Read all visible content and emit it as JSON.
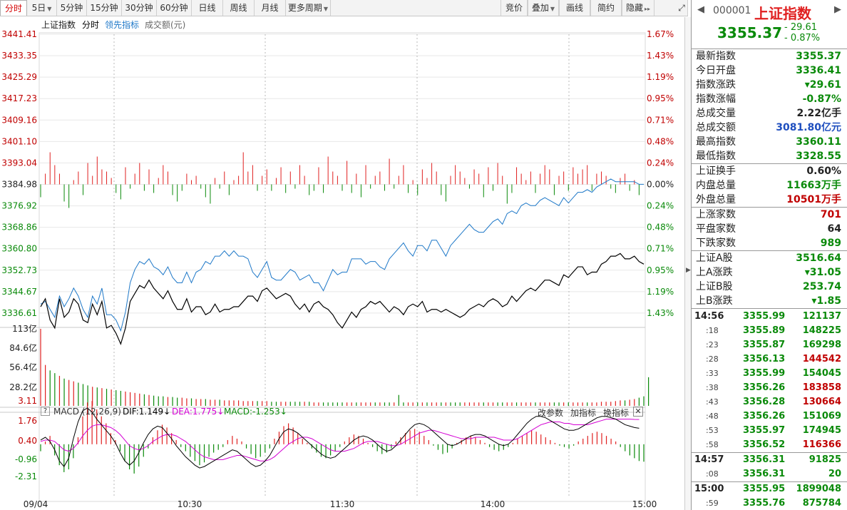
{
  "toolbar": {
    "tabs": [
      "分时",
      "5日",
      "5分钟",
      "15分钟",
      "30分钟",
      "60分钟",
      "日线",
      "周线",
      "月线",
      "更多周期"
    ],
    "right_buttons": [
      "竞价",
      "叠加",
      "画线",
      "简约",
      "隐藏"
    ]
  },
  "legend": {
    "items": [
      "上证指数",
      "分时",
      "领先指标",
      "成交额(元)"
    ]
  },
  "chart_data": {
    "type": "line",
    "x_labels": [
      "09/04",
      "10:30",
      "11:30",
      "14:00",
      "15:00"
    ],
    "y_left": [
      "3441.41",
      "3433.35",
      "3425.29",
      "3417.23",
      "3409.16",
      "3401.10",
      "3393.04",
      "3384.98",
      "3376.92",
      "3368.86",
      "3360.80",
      "3352.73",
      "3344.67",
      "3336.61"
    ],
    "y_right": [
      "1.67%",
      "1.43%",
      "1.19%",
      "0.95%",
      "0.71%",
      "0.48%",
      "0.24%",
      "0.00%",
      "0.24%",
      "0.48%",
      "0.71%",
      "0.95%",
      "1.19%",
      "1.43%"
    ],
    "volume_labels": [
      "113亿",
      "84.6亿",
      "56.4亿",
      "28.2亿"
    ],
    "macd_labels": [
      "3.11",
      "1.76",
      "0.40",
      "-0.96",
      "-2.31"
    ],
    "prev_close": 3384.98,
    "colors": {
      "up": "#e02020",
      "down": "#0a8a0a",
      "price": "#000000",
      "leading": "#1e78c8",
      "dif": "#000000",
      "dea": "#d400d4"
    },
    "price": [
      3339,
      3342,
      3334,
      3331,
      3342,
      3335,
      3337,
      3342,
      3340,
      3334,
      3333,
      3340,
      3336,
      3341,
      3331,
      3332,
      3329,
      3325,
      3331,
      3341,
      3344,
      3347,
      3346,
      3349,
      3346,
      3344,
      3342,
      3345,
      3341,
      3338,
      3338,
      3342,
      3337,
      3339,
      3339,
      3336,
      3337,
      3340,
      3337,
      3338,
      3338,
      3339,
      3339,
      3341,
      3343,
      3343,
      3341,
      3345,
      3346,
      3344,
      3342,
      3343,
      3344,
      3343,
      3340,
      3338,
      3340,
      3337,
      3340,
      3341,
      3339,
      3338,
      3336,
      3333,
      3331,
      3334,
      3337,
      3335,
      3338,
      3339,
      3341,
      3340,
      3341,
      3339,
      3337,
      3339,
      3338,
      3336,
      3339,
      3340,
      3339,
      3341,
      3337,
      3338,
      3338,
      3337,
      3338,
      3337,
      3336,
      3335,
      3336,
      3338,
      3339,
      3340,
      3339,
      3341,
      3342,
      3341,
      3339,
      3340,
      3343,
      3341,
      3343,
      3345,
      3346,
      3345,
      3347,
      3349,
      3349,
      3348,
      3347,
      3351,
      3350,
      3352,
      3354,
      3354,
      3351,
      3352,
      3352,
      3355,
      3356,
      3358,
      3358,
      3359,
      3357,
      3357,
      3358,
      3356,
      3355
    ],
    "leading": [
      3340,
      3341,
      3338,
      3335,
      3343,
      3339,
      3342,
      3346,
      3343,
      3338,
      3335,
      3343,
      3340,
      3346,
      3336,
      3336,
      3334,
      3330,
      3337,
      3348,
      3353,
      3356,
      3355,
      3357,
      3354,
      3353,
      3351,
      3354,
      3350,
      3348,
      3348,
      3352,
      3348,
      3352,
      3353,
      3356,
      3355,
      3358,
      3358,
      3360,
      3358,
      3360,
      3358,
      3358,
      3357,
      3352,
      3350,
      3353,
      3356,
      3350,
      3349,
      3349,
      3351,
      3353,
      3352,
      3349,
      3350,
      3351,
      3348,
      3348,
      3345,
      3349,
      3353,
      3351,
      3352,
      3352,
      3357,
      3357,
      3357,
      3355,
      3356,
      3356,
      3354,
      3353,
      3357,
      3359,
      3361,
      3363,
      3360,
      3358,
      3362,
      3362,
      3360,
      3364,
      3364,
      3361,
      3358,
      3362,
      3364,
      3366,
      3368,
      3370,
      3368,
      3367,
      3367,
      3369,
      3371,
      3372,
      3370,
      3374,
      3375,
      3374,
      3377,
      3378,
      3377,
      3377,
      3379,
      3380,
      3379,
      3378,
      3377,
      3380,
      3378,
      3380,
      3382,
      3382,
      3383,
      3382,
      3384,
      3385,
      3386,
      3387,
      3386,
      3386,
      3386,
      3386,
      3386,
      3385,
      3385
    ],
    "leading_bars": [
      -0.6,
      0.5,
      1.5,
      0.9,
      0.5,
      -0.8,
      -1.1,
      0.2,
      0.6,
      -0.5,
      1.0,
      0.4,
      1.3,
      0.7,
      0.6,
      0.3,
      -0.4,
      -0.7,
      0.8,
      -0.2,
      0.5,
      1.0,
      -0.3,
      0.7,
      -0.4,
      0.3,
      0.9,
      0.6,
      -0.5,
      -0.8,
      -0.3,
      0.5,
      0.2,
      0.4,
      -0.2,
      -0.6,
      -0.9,
      0.3,
      -0.2,
      0.6,
      -0.5,
      0.2,
      0.4,
      1.5,
      0.6,
      0.9,
      -0.3,
      0.4,
      0.7,
      -0.3,
      0.3,
      0.8,
      -0.4,
      0.6,
      -0.2,
      0.9,
      0.4,
      -0.5,
      -0.3,
      0.8,
      -0.4,
      1.3,
      0.6,
      0.4,
      -0.3,
      1.1,
      -0.4,
      0.5,
      -0.6,
      0.9,
      -0.2,
      0.4,
      0.6,
      -0.3,
      1.2,
      -0.2,
      0.4,
      0.9,
      -0.4,
      0.2,
      -0.5,
      0.7,
      0.3,
      1.0,
      0.6,
      -0.5,
      -0.8,
      0.4,
      0.9,
      0.6,
      0.3,
      -0.2,
      0.7,
      0.5,
      -0.6,
      0.8,
      -0.3,
      1.0,
      0.4,
      -0.9,
      -0.4,
      0.8,
      0.5,
      0.2,
      0.6,
      -0.4,
      0.5,
      0.9,
      0.7,
      -0.5,
      0.4,
      0.6,
      -0.3,
      0.8,
      0.5,
      0.7,
      0.9,
      -0.3,
      0.5,
      0.6,
      0.4,
      -0.2,
      -0.4,
      0.3,
      0.5,
      -0.3,
      0.2,
      -0.5
    ],
    "volume": [
      113,
      60,
      52,
      48,
      44,
      40,
      38,
      36,
      34,
      32,
      30,
      28,
      27,
      26,
      25,
      24,
      23,
      22,
      21,
      20,
      19,
      18,
      17,
      16,
      15,
      14,
      14,
      13,
      13,
      12,
      12,
      11,
      11,
      10,
      10,
      10,
      9,
      9,
      9,
      8,
      8,
      8,
      8,
      7,
      7,
      7,
      7,
      7,
      7,
      6,
      6,
      6,
      6,
      6,
      6,
      6,
      6,
      6,
      5,
      5,
      5,
      5,
      5,
      5,
      5,
      5,
      5,
      5,
      5,
      5,
      5,
      5,
      5,
      5,
      5,
      5,
      16,
      5,
      5,
      5,
      5,
      5,
      5,
      5,
      5,
      5,
      5,
      5,
      5,
      5,
      5,
      5,
      5,
      5,
      5,
      5,
      5,
      5,
      5,
      5,
      5,
      5,
      5,
      5,
      5,
      5,
      5,
      5,
      5,
      5,
      5,
      5,
      5,
      5,
      5,
      5,
      5,
      5,
      5,
      6,
      6,
      6,
      7,
      8,
      8,
      9,
      10,
      12,
      14,
      42
    ],
    "macd_bars": [
      -0.5,
      0.2,
      0.6,
      -0.8,
      -1.5,
      -2.0,
      -1.8,
      -1.0,
      0.5,
      2.0,
      3.0,
      3.1,
      2.5,
      2.0,
      1.5,
      0.8,
      0.3,
      -0.5,
      -1.2,
      -1.8,
      -2.1,
      -1.6,
      -0.9,
      -0.3,
      0.5,
      1.0,
      1.4,
      1.2,
      0.8,
      0.3,
      -0.2,
      -0.5,
      -0.9,
      -1.2,
      -1.5,
      -1.3,
      -0.9,
      -0.6,
      -0.4,
      -0.2,
      0.3,
      0.6,
      0.4,
      0.2,
      -0.3,
      -0.7,
      -1.0,
      -0.9,
      -0.6,
      -0.3,
      0.4,
      0.9,
      1.3,
      1.5,
      1.2,
      0.8,
      0.4,
      0.1,
      -0.3,
      -0.6,
      -0.9,
      -1.0,
      -0.8,
      -0.5,
      -0.2,
      0.2,
      0.5,
      0.7,
      0.6,
      0.4,
      0.1,
      -0.2,
      -0.5,
      -0.7,
      -0.6,
      -0.3,
      0.2,
      0.5,
      0.8,
      1.0,
      1.1,
      0.9,
      0.6,
      0.3,
      -0.1,
      -0.4,
      -0.7,
      -0.6,
      -0.3,
      0.1,
      0.3,
      0.5,
      0.6,
      0.5,
      0.3,
      0.1,
      -0.2,
      -0.4,
      -0.5,
      -0.4,
      -0.2,
      0.1,
      0.4,
      0.6,
      0.8,
      1.0,
      0.9,
      0.7,
      0.5,
      0.3,
      0.1,
      -0.1,
      -0.2,
      -0.3,
      -0.1,
      0.2,
      0.4,
      0.6,
      0.8,
      0.9,
      0.8,
      0.6,
      0.4,
      0.2,
      -0.2,
      -0.5,
      -0.8,
      -1.0,
      -1.2,
      -1.25
    ],
    "dif": [
      0.3,
      0.5,
      0.2,
      -0.4,
      -1.2,
      -1.6,
      -1.0,
      0.4,
      1.6,
      2.4,
      2.6,
      2.3,
      1.8,
      1.4,
      1.0,
      0.6,
      0.1,
      -0.6,
      -1.2,
      -1.5,
      -1.2,
      -0.6,
      0.1,
      0.7,
      1.1,
      1.3,
      1.2,
      0.8,
      0.4,
      -0.1,
      -0.5,
      -0.9,
      -1.2,
      -1.5,
      -1.7,
      -1.6,
      -1.4,
      -1.2,
      -1.0,
      -0.8,
      -0.6,
      -0.4,
      -0.5,
      -0.8,
      -1.1,
      -1.4,
      -1.6,
      -1.5,
      -1.2,
      -0.8,
      -0.2,
      0.4,
      0.9,
      1.1,
      1.0,
      0.8,
      0.5,
      0.2,
      -0.1,
      -0.4,
      -0.7,
      -0.9,
      -1.0,
      -0.9,
      -0.6,
      -0.3,
      0.0,
      0.3,
      0.5,
      0.6,
      0.5,
      0.3,
      0.0,
      -0.3,
      -0.5,
      -0.4,
      -0.1,
      0.3,
      0.7,
      1.1,
      1.4,
      1.5,
      1.4,
      1.2,
      0.9,
      0.6,
      0.3,
      0.0,
      -0.1,
      0.0,
      0.2,
      0.4,
      0.6,
      0.7,
      0.7,
      0.6,
      0.4,
      0.2,
      0.0,
      -0.1,
      0.0,
      0.3,
      0.7,
      1.1,
      1.5,
      1.8,
      2.0,
      2.0,
      1.9,
      1.7,
      1.5,
      1.3,
      1.1,
      1.0,
      1.0,
      1.1,
      1.3,
      1.5,
      1.7,
      1.9,
      2.0,
      2.0,
      1.9,
      1.8,
      1.6,
      1.4,
      1.3,
      1.2,
      1.15
    ],
    "dea": [
      0.2,
      0.3,
      0.3,
      0.2,
      -0.1,
      -0.4,
      -0.5,
      -0.3,
      0.1,
      0.6,
      1.0,
      1.3,
      1.4,
      1.4,
      1.3,
      1.2,
      1.0,
      0.7,
      0.3,
      -0.1,
      -0.3,
      -0.4,
      -0.3,
      -0.1,
      0.2,
      0.4,
      0.6,
      0.7,
      0.7,
      0.6,
      0.4,
      0.2,
      -0.1,
      -0.4,
      -0.7,
      -0.9,
      -1.0,
      -1.1,
      -1.1,
      -1.1,
      -1.0,
      -0.9,
      -0.8,
      -0.8,
      -0.9,
      -1.0,
      -1.1,
      -1.2,
      -1.2,
      -1.1,
      -0.9,
      -0.6,
      -0.3,
      0.0,
      0.2,
      0.4,
      0.5,
      0.5,
      0.4,
      0.2,
      0.0,
      -0.2,
      -0.4,
      -0.5,
      -0.5,
      -0.5,
      -0.4,
      -0.3,
      -0.1,
      0.1,
      0.2,
      0.2,
      0.2,
      0.1,
      0.0,
      -0.1,
      -0.1,
      0.0,
      0.2,
      0.4,
      0.6,
      0.8,
      0.9,
      1.0,
      1.0,
      0.9,
      0.8,
      0.7,
      0.6,
      0.5,
      0.4,
      0.4,
      0.4,
      0.5,
      0.5,
      0.5,
      0.5,
      0.5,
      0.4,
      0.3,
      0.3,
      0.3,
      0.4,
      0.6,
      0.8,
      1.0,
      1.2,
      1.4,
      1.5,
      1.6,
      1.6,
      1.6,
      1.5,
      1.5,
      1.4,
      1.4,
      1.4,
      1.4,
      1.5,
      1.6,
      1.7,
      1.8,
      1.8,
      1.8,
      1.8,
      1.8,
      1.8,
      1.78,
      1.775
    ]
  },
  "macd": {
    "title": "MACD (12,26,9)",
    "dif": "DIF:1.149↓",
    "dea": "DEA:1.775↓",
    "macd": "MACD:-1.253↓",
    "buttons": [
      "改参数",
      "加指标",
      "换指标"
    ]
  },
  "quote": {
    "code": "000001",
    "name": "上证指数",
    "price": "3355.37",
    "change": "- 29.61",
    "change_pct": "- 0.87%"
  },
  "stats": [
    {
      "k": "最新指数",
      "v": "3355.37",
      "c": "g"
    },
    {
      "k": "今日开盘",
      "v": "3336.41",
      "c": "g"
    },
    {
      "k": "指数涨跌",
      "v": "▾29.61",
      "c": "g"
    },
    {
      "k": "指数涨幅",
      "v": "-0.87%",
      "c": "g"
    },
    {
      "k": "总成交量",
      "v": "2.22亿手",
      "c": "k2"
    },
    {
      "k": "总成交额",
      "v": "3081.80亿元",
      "c": "b"
    },
    {
      "k": "最高指数",
      "v": "3360.11",
      "c": "g"
    },
    {
      "k": "最低指数",
      "v": "3328.55",
      "c": "g"
    }
  ],
  "stats2": [
    {
      "k": "上证换手",
      "v": "0.60%",
      "c": "k2"
    },
    {
      "k": "内盘总量",
      "v": "11663万手",
      "c": "g"
    },
    {
      "k": "外盘总量",
      "v": "10501万手",
      "c": "r"
    }
  ],
  "stats3": [
    {
      "k": "上涨家数",
      "v": "701",
      "c": "r"
    },
    {
      "k": "平盘家数",
      "v": "64",
      "c": "k2"
    },
    {
      "k": "下跌家数",
      "v": "989",
      "c": "g"
    }
  ],
  "stats4": [
    {
      "k": "上证A股",
      "v": "3516.64",
      "c": "g"
    },
    {
      "k": "上A涨跌",
      "v": "▾31.05",
      "c": "g"
    },
    {
      "k": "上证B股",
      "v": "253.74",
      "c": "g"
    },
    {
      "k": "上B涨跌",
      "v": "▾1.85",
      "c": "g"
    }
  ],
  "ticks": [
    {
      "t": "14:56",
      "p": "3355.99",
      "v": "121137",
      "c": "g"
    },
    {
      "t": ":18",
      "p": "3355.89",
      "v": "148225",
      "c": "g"
    },
    {
      "t": ":23",
      "p": "3355.87",
      "v": "169298",
      "c": "g"
    },
    {
      "t": ":28",
      "p": "3356.13",
      "v": "144542",
      "c": "r"
    },
    {
      "t": ":33",
      "p": "3355.99",
      "v": "154045",
      "c": "g"
    },
    {
      "t": ":38",
      "p": "3356.26",
      "v": "183858",
      "c": "r"
    },
    {
      "t": ":43",
      "p": "3356.28",
      "v": "130664",
      "c": "r"
    },
    {
      "t": ":48",
      "p": "3356.26",
      "v": "151069",
      "c": "g"
    },
    {
      "t": ":53",
      "p": "3355.97",
      "v": "174945",
      "c": "g"
    },
    {
      "t": ":58",
      "p": "3356.52",
      "v": "116366",
      "c": "r"
    },
    {
      "t": "14:57",
      "p": "3356.31",
      "v": "91825",
      "c": "g"
    },
    {
      "t": ":08",
      "p": "3356.31",
      "v": "20",
      "c": "g"
    },
    {
      "t": "15:00",
      "p": "3355.95",
      "v": "1899048",
      "c": "g"
    },
    {
      "t": ":59",
      "p": "3355.76",
      "v": "875784",
      "c": "g"
    }
  ]
}
